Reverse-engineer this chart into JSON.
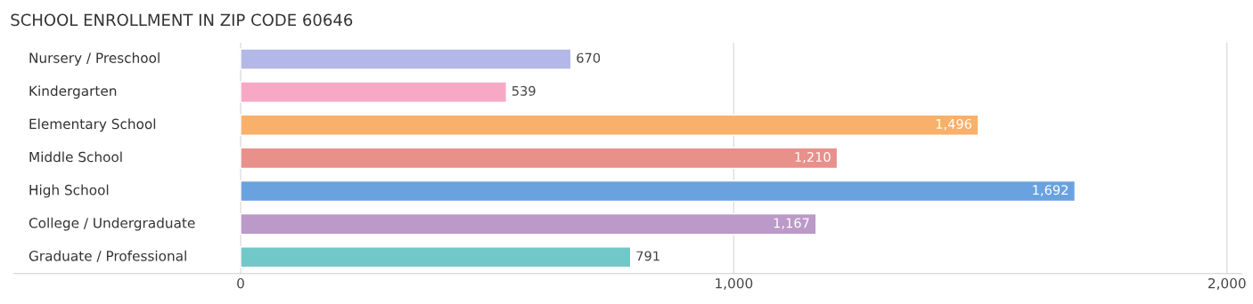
{
  "chart_data": {
    "type": "bar",
    "orientation": "horizontal",
    "title": "SCHOOL ENROLLMENT IN ZIP CODE 60646",
    "categories": [
      "Nursery / Preschool",
      "Kindergarten",
      "Elementary School",
      "Middle School",
      "High School",
      "College / Undergraduate",
      "Graduate / Professional"
    ],
    "values": [
      670,
      539,
      1496,
      1210,
      1692,
      1167,
      791
    ],
    "colors": [
      "#b3b8e8",
      "#f7a8c4",
      "#f9b06b",
      "#e8908a",
      "#6aa2df",
      "#bb99c8",
      "#72c8c8"
    ],
    "xlim": [
      -460,
      2030
    ],
    "xticks": [
      {
        "value": 0,
        "label": "0"
      },
      {
        "value": 1000,
        "label": "1,000"
      },
      {
        "value": 2000,
        "label": "2,000"
      }
    ],
    "value_labels": [
      "670",
      "539",
      "1,496",
      "1,210",
      "1,692",
      "1,167",
      "791"
    ],
    "grid": "x"
  }
}
